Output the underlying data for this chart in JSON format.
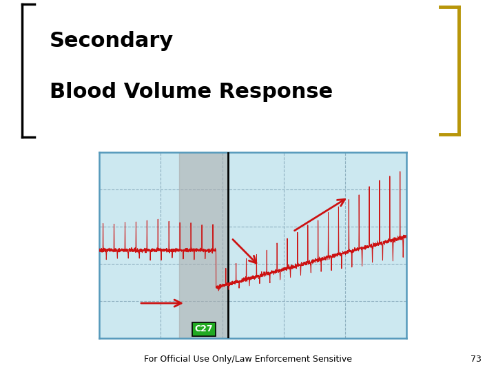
{
  "title_line1": "Secondary",
  "title_line2": "Blood Volume Response",
  "title_fontsize": 22,
  "title_fontweight": "bold",
  "footer_text": "For Official Use Only/Law Enforcement Sensitive",
  "footer_page": "73",
  "footer_fontsize": 9,
  "bg_color": "#ffffff",
  "chart_bg": "#cce8f0",
  "chart_border": "#5599bb",
  "grid_color": "#88aabb",
  "signal_color": "#cc1111",
  "bracket_left_color": "#000000",
  "bracket_right_color": "#b8960a",
  "golden_line_color": "#c8a820",
  "gray_band_color": "#aaaaaa",
  "gray_band_alpha": 0.55,
  "label_text": "C27",
  "label_bg": "#22aa22",
  "label_color": "#ffffff",
  "arrow_color": "#cc1111"
}
